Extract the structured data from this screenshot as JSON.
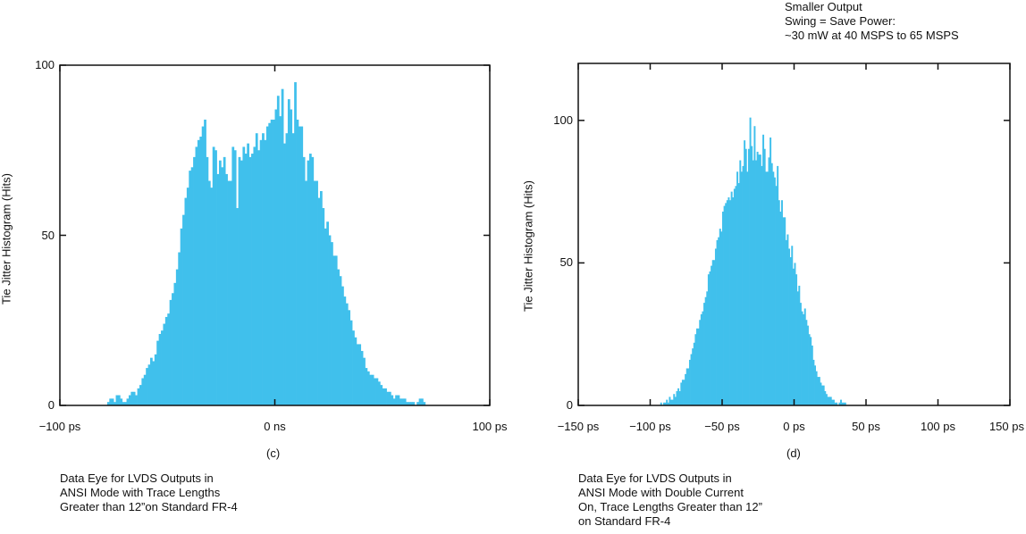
{
  "annotation": {
    "lines": [
      "Smaller Output",
      "Swing = Save Power:",
      "~30 mW at 40 MSPS to 65 MSPS"
    ]
  },
  "chart_data": [
    {
      "type": "bar",
      "title": "",
      "ylabel": "Tie Jitter Histogram (Hits)",
      "xlabel": "",
      "subtitle": "(c)",
      "caption": [
        "Data Eye for LVDS Outputs in",
        "ANSI Mode with Trace Lengths",
        "Greater than 12”on Standard FR-4"
      ],
      "xlim": [
        -100,
        100
      ],
      "ylim": [
        0,
        100
      ],
      "x_ticks": [
        {
          "value": -100,
          "label": "−100 ps"
        },
        {
          "value": 0,
          "label": "0 ns"
        },
        {
          "value": 100,
          "label": "100 ps"
        }
      ],
      "y_ticks": [
        {
          "value": 0,
          "label": "0"
        },
        {
          "value": 50,
          "label": "50"
        },
        {
          "value": 100,
          "label": "100"
        }
      ],
      "grid": false,
      "color": "#40c0ec",
      "bin_width_ps": 1,
      "x_start_ps": -78,
      "values": [
        1,
        2,
        2,
        1,
        3,
        3,
        2,
        1,
        1,
        2,
        3,
        4,
        4,
        3,
        5,
        6,
        8,
        9,
        11,
        12,
        14,
        13,
        15,
        19,
        21,
        22,
        24,
        26,
        27,
        31,
        33,
        36,
        40,
        45,
        52,
        56,
        61,
        64,
        69,
        70,
        73,
        76,
        78,
        79,
        82,
        84,
        73,
        66,
        64,
        76,
        75,
        68,
        72,
        70,
        73,
        68,
        66,
        66,
        76,
        75,
        58,
        73,
        72,
        76,
        74,
        77,
        73,
        74,
        76,
        80,
        75,
        78,
        80,
        78,
        82,
        83,
        84,
        84,
        87,
        91,
        85,
        93,
        77,
        80,
        90,
        87,
        80,
        95,
        84,
        82,
        82,
        73,
        66,
        72,
        74,
        73,
        66,
        66,
        61,
        63,
        58,
        52,
        54,
        50,
        48,
        44,
        44,
        40,
        38,
        35,
        32,
        30,
        28,
        25,
        22,
        20,
        18,
        18,
        16,
        14,
        11,
        10,
        9,
        9,
        8,
        8,
        7,
        6,
        5,
        5,
        4,
        4,
        3,
        2,
        3,
        3,
        2,
        2,
        2,
        1,
        1,
        1,
        1,
        0,
        1,
        2,
        2,
        1
      ]
    },
    {
      "type": "bar",
      "title": "",
      "ylabel": "Tie Jitter Histogram (Hits)",
      "xlabel": "",
      "subtitle": "(d)",
      "caption": [
        "Data Eye for LVDS Outputs in",
        "ANSI Mode with Double Current",
        "On, Trace Lengths Greater than 12”",
        "on Standard FR-4"
      ],
      "xlim": [
        -150,
        150
      ],
      "ylim": [
        0,
        120
      ],
      "x_ticks": [
        {
          "value": -150,
          "label": "−150 ps"
        },
        {
          "value": -100,
          "label": "−100 ps"
        },
        {
          "value": -50,
          "label": "−50 ps"
        },
        {
          "value": 0,
          "label": "0 ps"
        },
        {
          "value": 50,
          "label": "50 ps"
        },
        {
          "value": 100,
          "label": "100 ps"
        },
        {
          "value": 150,
          "label": "150 ps"
        }
      ],
      "y_ticks": [
        {
          "value": 0,
          "label": "0"
        },
        {
          "value": 50,
          "label": "50"
        },
        {
          "value": 100,
          "label": "100"
        }
      ],
      "grid": false,
      "color": "#40c0ec",
      "bin_width_ps": 1,
      "x_start_ps": -93,
      "values": [
        1,
        0,
        1,
        1,
        2,
        1,
        3,
        2,
        2,
        4,
        3,
        5,
        6,
        5,
        8,
        9,
        9,
        11,
        13,
        13,
        16,
        18,
        20,
        22,
        25,
        27,
        27,
        30,
        32,
        33,
        36,
        38,
        40,
        46,
        47,
        49,
        51,
        51,
        55,
        58,
        59,
        62,
        61,
        68,
        70,
        71,
        72,
        73,
        72,
        75,
        73,
        76,
        77,
        82,
        78,
        86,
        82,
        84,
        93,
        90,
        82,
        90,
        101,
        91,
        86,
        98,
        86,
        89,
        88,
        88,
        84,
        95,
        90,
        82,
        82,
        87,
        94,
        85,
        82,
        80,
        77,
        84,
        72,
        68,
        72,
        66,
        66,
        58,
        60,
        55,
        52,
        56,
        48,
        50,
        46,
        40,
        42,
        36,
        33,
        32,
        34,
        30,
        28,
        25,
        24,
        21,
        16,
        14,
        12,
        10,
        10,
        8,
        7,
        7,
        5,
        4,
        3,
        3,
        3,
        2,
        2,
        1,
        1,
        0,
        1,
        2,
        1,
        1,
        1
      ]
    }
  ]
}
